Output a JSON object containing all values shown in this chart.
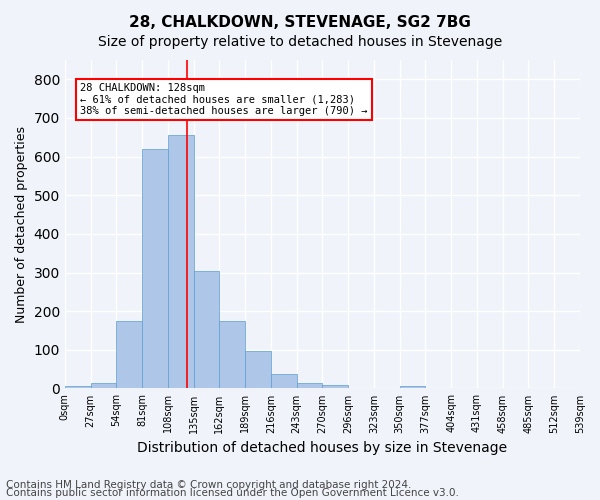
{
  "title": "28, CHALKDOWN, STEVENAGE, SG2 7BG",
  "subtitle": "Size of property relative to detached houses in Stevenage",
  "xlabel": "Distribution of detached houses by size in Stevenage",
  "ylabel": "Number of detached properties",
  "bin_labels": [
    "0sqm",
    "27sqm",
    "54sqm",
    "81sqm",
    "108sqm",
    "135sqm",
    "162sqm",
    "189sqm",
    "216sqm",
    "243sqm",
    "270sqm",
    "296sqm",
    "323sqm",
    "350sqm",
    "377sqm",
    "404sqm",
    "431sqm",
    "458sqm",
    "485sqm",
    "512sqm",
    "539sqm"
  ],
  "bar_values": [
    5,
    13,
    175,
    620,
    655,
    305,
    175,
    98,
    38,
    13,
    10,
    0,
    0,
    5,
    0,
    0,
    0,
    0,
    0,
    0
  ],
  "bar_color": "#aec6e8",
  "bar_edge_color": "#5a9fd4",
  "property_line_x": 128,
  "annotation_text": "28 CHALKDOWN: 128sqm\n← 61% of detached houses are smaller (1,283)\n38% of semi-detached houses are larger (790) →",
  "annotation_box_color": "white",
  "annotation_box_edge_color": "red",
  "vline_color": "red",
  "ylim": [
    0,
    850
  ],
  "yticks": [
    0,
    100,
    200,
    300,
    400,
    500,
    600,
    700,
    800
  ],
  "footer_line1": "Contains HM Land Registry data © Crown copyright and database right 2024.",
  "footer_line2": "Contains public sector information licensed under the Open Government Licence v3.0.",
  "background_color": "#f0f4fa",
  "plot_bg_color": "#f0f4fa",
  "grid_color": "white",
  "title_fontsize": 11,
  "subtitle_fontsize": 10,
  "xlabel_fontsize": 10,
  "ylabel_fontsize": 9,
  "footer_fontsize": 7.5
}
